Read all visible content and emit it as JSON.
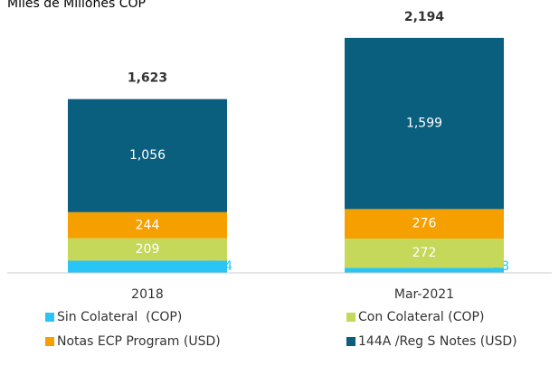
{
  "chart_data": {
    "type": "stacked_bar",
    "title": "Miles de Millones COP",
    "categories": [
      "2018",
      "Mar-2021"
    ],
    "series": [
      {
        "name": "Sin Colateral  (COP)",
        "color": "#29c5f6",
        "values": [
          114,
          48
        ]
      },
      {
        "name": "Con Colateral (COP)",
        "color": "#c5d85a",
        "values": [
          209,
          272
        ]
      },
      {
        "name": "Notas ECP Program (USD)",
        "color": "#f6a000",
        "values": [
          244,
          276
        ]
      },
      {
        "name": "144A /Reg S Notes (USD)",
        "color": "#0b5f7e",
        "values": [
          1056,
          1599
        ],
        "value_labels": [
          "1,056",
          "1,599"
        ]
      }
    ],
    "totals": [
      1623,
      2194
    ],
    "total_labels": [
      "1,623",
      "2,194"
    ],
    "ylim": [
      0,
      2400
    ],
    "legend": "bottom"
  }
}
